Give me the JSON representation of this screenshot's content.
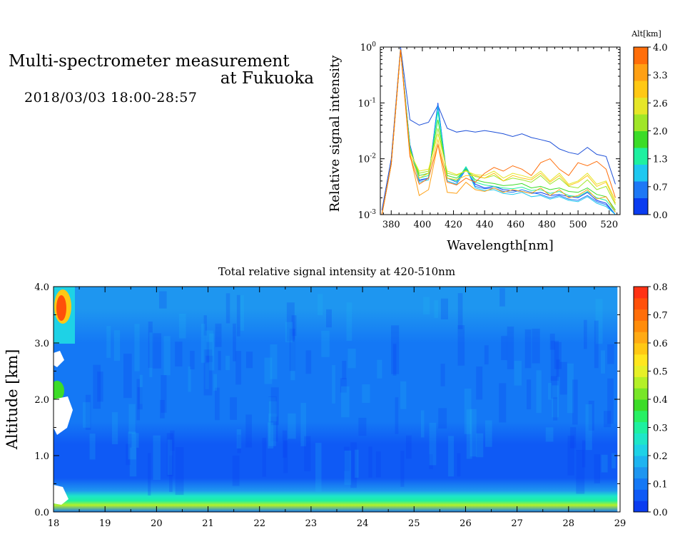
{
  "header": {
    "title_line1": "Multi-spectrometer measurement",
    "title_line2": "at Fukuoka",
    "subtitle": "2018/03/03 18:00-28:57"
  },
  "chart_data": [
    {
      "type": "line",
      "xlabel": "Wavelength[nm]",
      "ylabel": "Relative signal intensity",
      "x": [
        374,
        380,
        386,
        392,
        398,
        404,
        410,
        416,
        422,
        428,
        434,
        440,
        446,
        452,
        458,
        464,
        470,
        476,
        482,
        488,
        494,
        500,
        506,
        512,
        518,
        524
      ],
      "xlim": [
        373,
        527
      ],
      "ylim": [
        0.001,
        1
      ],
      "yscale": "log",
      "x_ticks": [
        380,
        400,
        420,
        440,
        460,
        480,
        500,
        520
      ],
      "y_ticks": [
        {
          "value": 0.001,
          "base": "10",
          "exp": "-3"
        },
        {
          "value": 0.01,
          "base": "10",
          "exp": "-2"
        },
        {
          "value": 0.1,
          "base": "10",
          "exp": "-1"
        },
        {
          "value": 1,
          "base": "10",
          "exp": "0"
        }
      ],
      "legend": {
        "title": "Alt[km]",
        "placement": "right",
        "labels": [
          "0.0",
          "0.7",
          "1.3",
          "2.0",
          "2.6",
          "3.3",
          "4.0"
        ],
        "colors": [
          "#0a3cf0",
          "#1e78f5",
          "#1ec8f0",
          "#1ef0a0",
          "#3cdc28",
          "#a0e628",
          "#e6e628",
          "#ffc814",
          "#ffa014",
          "#ff6e0a"
        ]
      },
      "series": [
        {
          "color": "#1c4fd8",
          "values": [
            0.0012,
            0.01,
            1.0,
            0.05,
            0.04,
            0.045,
            0.09,
            0.035,
            0.03,
            0.032,
            0.03,
            0.032,
            0.03,
            0.028,
            0.025,
            0.028,
            0.024,
            0.022,
            0.02,
            0.015,
            0.013,
            0.012,
            0.016,
            0.012,
            0.011,
            0.0035
          ]
        },
        {
          "color": "#0a3cf0",
          "values": [
            0.001,
            0.008,
            0.9,
            0.018,
            0.004,
            0.0045,
            0.1,
            0.004,
            0.0035,
            0.0065,
            0.0035,
            0.003,
            0.0032,
            0.0028,
            0.0027,
            0.0026,
            0.0024,
            0.0025,
            0.0022,
            0.0023,
            0.0021,
            0.002,
            0.0025,
            0.0018,
            0.0016,
            0.001
          ]
        },
        {
          "color": "#1e78f5",
          "values": [
            0.001,
            0.008,
            0.9,
            0.017,
            0.0042,
            0.0045,
            0.095,
            0.0045,
            0.0038,
            0.007,
            0.0032,
            0.0029,
            0.003,
            0.0026,
            0.0025,
            0.0028,
            0.0025,
            0.0023,
            0.002,
            0.0022,
            0.0019,
            0.0018,
            0.0022,
            0.0017,
            0.0015,
            0.001
          ]
        },
        {
          "color": "#1ec8f0",
          "values": [
            0.001,
            0.008,
            0.9,
            0.016,
            0.0038,
            0.0042,
            0.085,
            0.004,
            0.0035,
            0.0068,
            0.003,
            0.0027,
            0.0028,
            0.0024,
            0.0023,
            0.0025,
            0.0021,
            0.0022,
            0.0019,
            0.0021,
            0.0018,
            0.0017,
            0.0021,
            0.0016,
            0.0014,
            0.001
          ]
        },
        {
          "color": "#1ef0a0",
          "values": [
            0.001,
            0.008,
            0.9,
            0.016,
            0.0045,
            0.005,
            0.07,
            0.0045,
            0.004,
            0.0072,
            0.0038,
            0.0034,
            0.0032,
            0.003,
            0.0029,
            0.0031,
            0.0027,
            0.0028,
            0.0024,
            0.0026,
            0.0022,
            0.0021,
            0.0026,
            0.002,
            0.0018,
            0.0011
          ]
        },
        {
          "color": "#3cdc28",
          "values": [
            0.001,
            0.008,
            0.9,
            0.015,
            0.005,
            0.0055,
            0.05,
            0.005,
            0.0045,
            0.0065,
            0.0042,
            0.0038,
            0.0036,
            0.0033,
            0.0034,
            0.0036,
            0.003,
            0.0032,
            0.0028,
            0.003,
            0.0026,
            0.0025,
            0.003,
            0.0023,
            0.0021,
            0.0012
          ]
        },
        {
          "color": "#a0e628",
          "values": [
            0.001,
            0.008,
            0.9,
            0.014,
            0.0055,
            0.006,
            0.035,
            0.0055,
            0.005,
            0.0062,
            0.0048,
            0.0045,
            0.005,
            0.004,
            0.0045,
            0.0042,
            0.0038,
            0.005,
            0.0035,
            0.0045,
            0.0032,
            0.003,
            0.0042,
            0.0028,
            0.0032,
            0.0015
          ]
        },
        {
          "color": "#e6e628",
          "values": [
            0.001,
            0.008,
            0.9,
            0.013,
            0.006,
            0.0065,
            0.028,
            0.006,
            0.0052,
            0.006,
            0.0052,
            0.005,
            0.006,
            0.0045,
            0.0055,
            0.005,
            0.0045,
            0.006,
            0.004,
            0.0055,
            0.0035,
            0.004,
            0.0055,
            0.0035,
            0.004,
            0.0018
          ]
        },
        {
          "color": "#ffc814",
          "values": [
            0.001,
            0.008,
            0.9,
            0.012,
            0.0045,
            0.0055,
            0.022,
            0.0045,
            0.0042,
            0.005,
            0.005,
            0.0045,
            0.0055,
            0.004,
            0.005,
            0.0045,
            0.0042,
            0.0055,
            0.0038,
            0.005,
            0.0033,
            0.0038,
            0.005,
            0.0032,
            0.0038,
            0.0016
          ]
        },
        {
          "color": "#ffa014",
          "values": [
            0.001,
            0.008,
            0.9,
            0.012,
            0.0022,
            0.0028,
            0.018,
            0.0025,
            0.0024,
            0.0038,
            0.0028,
            0.0026,
            0.003,
            0.0025,
            0.0028,
            0.0026,
            0.0024,
            0.003,
            0.0022,
            0.0028,
            0.002,
            0.0022,
            0.0028,
            0.0019,
            0.0021,
            0.0011
          ]
        },
        {
          "color": "#ff6e0a",
          "values": [
            0.001,
            0.008,
            0.9,
            0.011,
            0.0035,
            0.0045,
            0.018,
            0.0038,
            0.0034,
            0.0045,
            0.0038,
            0.0055,
            0.007,
            0.006,
            0.0075,
            0.0065,
            0.005,
            0.0085,
            0.01,
            0.0065,
            0.005,
            0.0085,
            0.0075,
            0.009,
            0.0065,
            0.002
          ]
        }
      ]
    },
    {
      "type": "heatmap",
      "title": "Total relative signal intensity at 420-510nm",
      "ylabel": "Altitude [km]",
      "xlim": [
        18,
        29
      ],
      "ylim": [
        0,
        4
      ],
      "data_xrange": [
        18,
        28.95
      ],
      "x_ticks": [
        "18",
        "19",
        "20",
        "21",
        "22",
        "23",
        "24",
        "25",
        "26",
        "27",
        "28",
        "29"
      ],
      "y_ticks": [
        "0.0",
        "1.0",
        "2.0",
        "3.0",
        "4.0"
      ],
      "altitude_profile": [
        {
          "alt": 0.0,
          "value": 0.1
        },
        {
          "alt": 0.12,
          "value": 0.45
        },
        {
          "alt": 0.2,
          "value": 0.3
        },
        {
          "alt": 0.28,
          "value": 0.25
        },
        {
          "alt": 0.38,
          "value": 0.12
        },
        {
          "alt": 0.6,
          "value": 0.08
        },
        {
          "alt": 0.85,
          "value": 0.05
        },
        {
          "alt": 1.2,
          "value": 0.065
        },
        {
          "alt": 1.6,
          "value": 0.085
        },
        {
          "alt": 2.2,
          "value": 0.1
        },
        {
          "alt": 3.0,
          "value": 0.11
        },
        {
          "alt": 3.6,
          "value": 0.12
        },
        {
          "alt": 4.0,
          "value": 0.13
        }
      ],
      "colorbar": {
        "placement": "right",
        "ticks": [
          "0.0",
          "0.1",
          "0.2",
          "0.3",
          "0.4",
          "0.5",
          "0.6",
          "0.7",
          "0.8"
        ],
        "range": [
          0,
          0.8
        ],
        "colors": [
          "#0a3cf0",
          "#0f5af5",
          "#1478f5",
          "#1e96f0",
          "#1eb4f0",
          "#1ed2e6",
          "#1ee6c8",
          "#1ef0a0",
          "#28f064",
          "#3cdc28",
          "#78e628",
          "#b4f028",
          "#e6f028",
          "#ffe61e",
          "#ffc814",
          "#ffaa14",
          "#ff8c0a",
          "#ff6e0a",
          "#ff500a",
          "#ff3214"
        ]
      }
    }
  ]
}
